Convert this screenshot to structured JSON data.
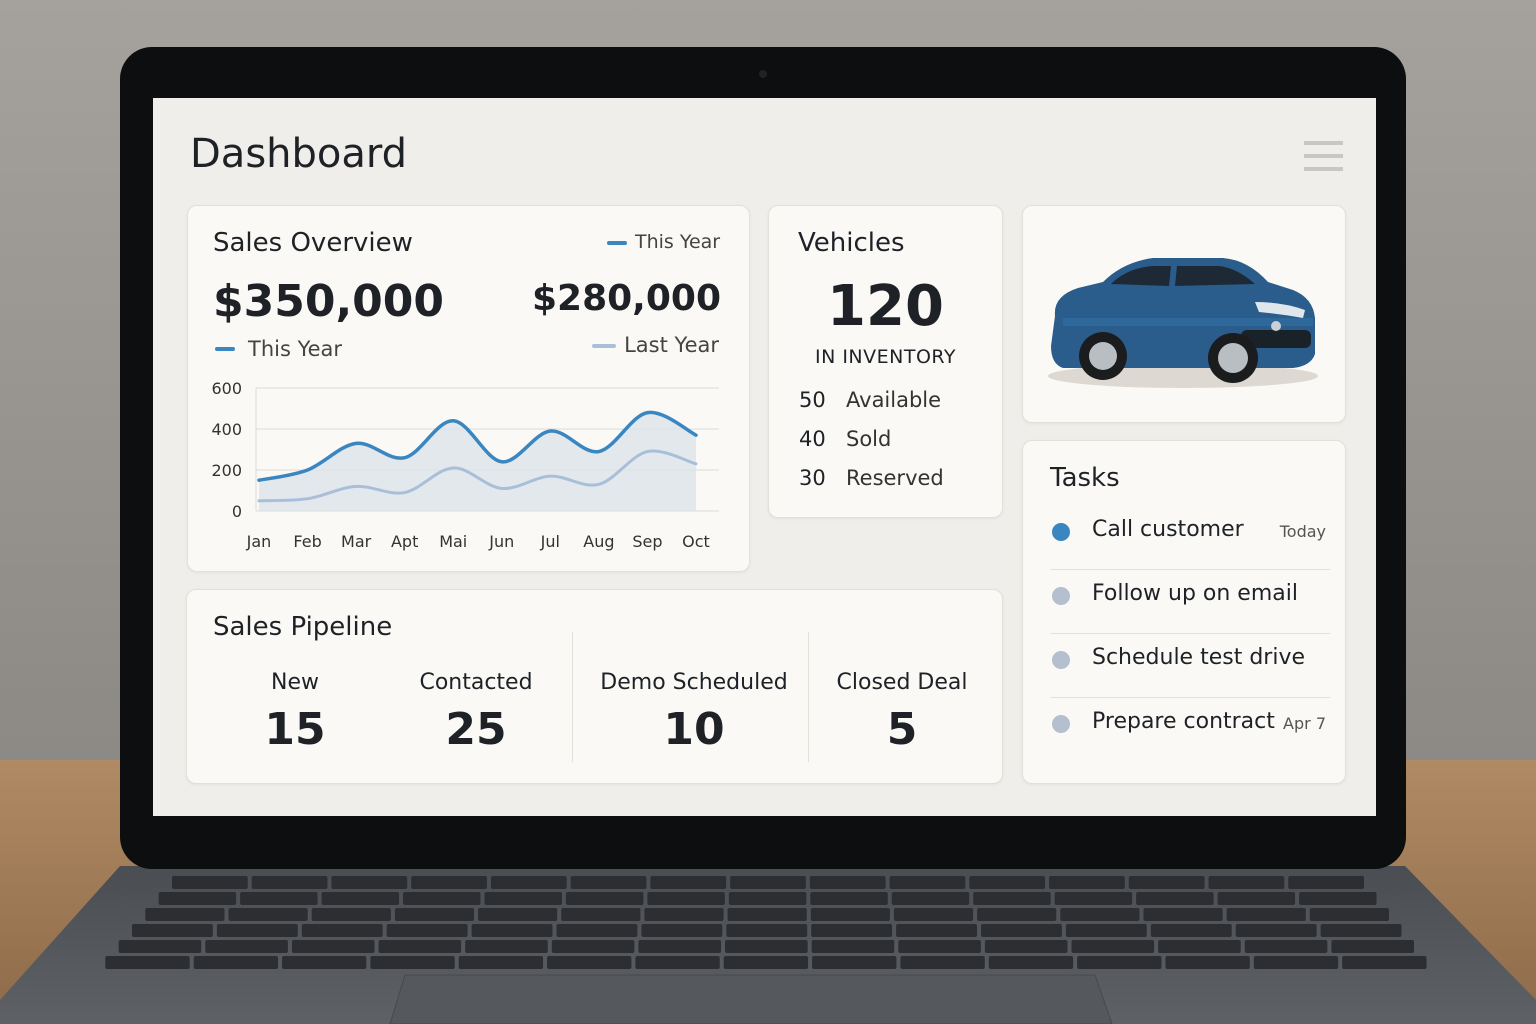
{
  "header": {
    "title": "Dashboard"
  },
  "sales_overview": {
    "title": "Sales Overview",
    "this_year": "$350,000",
    "last_year": "$280,000"
  },
  "chart_data": {
    "type": "line",
    "categories": [
      "Jan",
      "Feb",
      "Mar",
      "Apt",
      "Mai",
      "Jun",
      "Jul",
      "Aug",
      "Sep",
      "Oct"
    ],
    "series": [
      {
        "name": "This Year",
        "color": "#3a86c0",
        "values": [
          150,
          200,
          330,
          260,
          440,
          240,
          390,
          290,
          480,
          370
        ]
      },
      {
        "name": "Last Year",
        "color": "#a9bfd9",
        "values": [
          50,
          60,
          120,
          90,
          210,
          110,
          170,
          130,
          290,
          230
        ]
      }
    ],
    "ylim": [
      0,
      600
    ],
    "yticks": [
      0,
      200,
      400,
      600
    ],
    "grid": true
  },
  "vehicles": {
    "title": "Vehicles",
    "total": 120,
    "total_label": "IN INVENTORY",
    "breakdown": [
      {
        "count": 50,
        "label": "Available"
      },
      {
        "count": 40,
        "label": "Sold"
      },
      {
        "count": 30,
        "label": "Reserved"
      }
    ]
  },
  "tasks": {
    "title": "Tasks",
    "items": [
      {
        "text": "Call customer",
        "date": "Today"
      },
      {
        "text": "Follow up on email"
      },
      {
        "text": "Schedule test drive"
      },
      {
        "text": "Prepare contract",
        "date": "Apr 7"
      }
    ]
  },
  "pipeline": {
    "title": "Sales Pipeline",
    "stages": [
      {
        "label": "New",
        "count": 15
      },
      {
        "label": "Contacted",
        "count": 25
      },
      {
        "label": "Demo Scheduled",
        "count": 10
      },
      {
        "label": "Closed Deal",
        "count": 5
      }
    ]
  }
}
